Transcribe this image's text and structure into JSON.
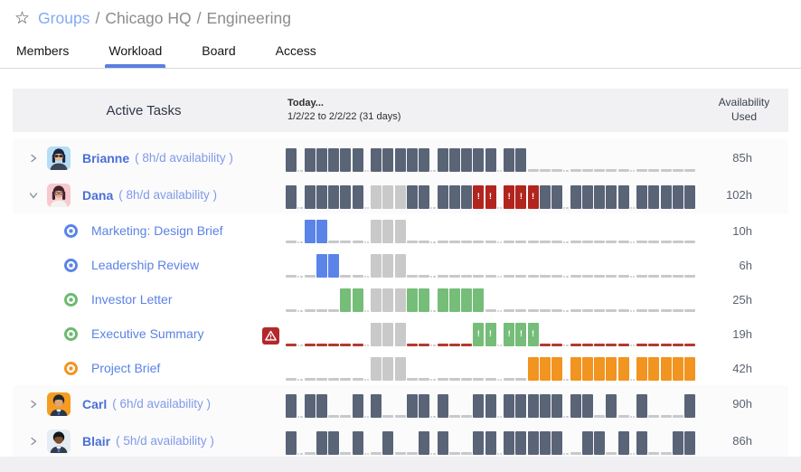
{
  "breadcrumb": {
    "root": "Groups",
    "separator": "/",
    "segments": [
      "Chicago HQ",
      "Engineering"
    ]
  },
  "tabs": [
    {
      "label": "Members",
      "active": false
    },
    {
      "label": "Workload",
      "active": true
    },
    {
      "label": "Board",
      "active": false
    },
    {
      "label": "Access",
      "active": false
    }
  ],
  "table_header": {
    "tasks": "Active Tasks",
    "today": "Today...",
    "range": "1/2/22 to 2/2/22 (31 days)",
    "availability_line1": "Availability",
    "availability_line2": "Used"
  },
  "colors": {
    "accent": "#5b7fe1",
    "dark_bar": "#5a6477",
    "light_bar": "#c9c9c9",
    "blue_bar": "#5b84e8",
    "green_bar": "#75bd79",
    "orange_bar": "#f19420",
    "red_bar": "#b2251f",
    "gray_dash": "#c7c9cc",
    "red_dash": "#b13a30",
    "warning_bg": "#b3282d"
  },
  "timeline_legend": {
    "D": "dark allocation bar",
    "L": "light gray allocation bar",
    "B": "blue task bar",
    "G": "green task bar",
    "O": "orange task bar",
    "R": "red overallocated bar with !",
    "X": "green alert bar with !",
    "-": "empty weekday dash",
    "r": "red empty weekday dash"
  },
  "rows": [
    {
      "type": "member",
      "name": "Brianne",
      "availability_note": "( 8h/d availability )",
      "expanded": false,
      "value": "85h",
      "avatar": {
        "bg": "#b5ddf4",
        "hair": "#1c2440",
        "skin": "#eab584",
        "top": "#3c4656",
        "glasses": "sunglasses"
      },
      "timeline": "DDDDDDDDDDDDDDDDDD-------------"
    },
    {
      "type": "member",
      "name": "Dana",
      "availability_note": "( 8h/d availability )",
      "expanded": true,
      "value": "102h",
      "avatar": {
        "bg": "#f6c9ce",
        "hair": "#40222e",
        "skin": "#eab08b",
        "top": "#f4f2f0",
        "glasses": "glasses"
      },
      "timeline": "DDDDDDLLLDDDDDRRRRRDDDDDDDDDDDD"
    },
    {
      "type": "task",
      "label": "Marketing: Design Brief",
      "status_color": "#5b84e8",
      "value": "10h",
      "timeline": "-BB---LLL----------------------"
    },
    {
      "type": "task",
      "label": "Leadership Review",
      "status_color": "#5b84e8",
      "value": "6h",
      "timeline": "--BB--LLL----------------------"
    },
    {
      "type": "task",
      "label": "Investor Letter",
      "status_color": "#6cba70",
      "value": "25h",
      "timeline": "----GGLLLGGGGGG----------------"
    },
    {
      "type": "task",
      "label": "Executive Summary",
      "status_color": "#6cba70",
      "value": "19h",
      "warning": true,
      "timeline": "rrrrrrLLLrrrrrXXXXXrrrrrrrrrrrr"
    },
    {
      "type": "task",
      "label": "Project Brief",
      "status_color": "#f19420",
      "value": "42h",
      "timeline": "------LLL---------OOOOOOOOOOOOO"
    },
    {
      "type": "member",
      "name": "Carl",
      "availability_note": "( 6h/d availability )",
      "expanded": false,
      "value": "90h",
      "avatar": {
        "bg": "#f59d20",
        "hair": "#23282e",
        "skin": "#e2a473",
        "top": "#2c3647",
        "tie": "#3a63cf",
        "collar": true
      },
      "timeline": "DDD--DD--DDD--DDDDDDDDD-D-D---D"
    },
    {
      "type": "member",
      "name": "Blair",
      "availability_note": "( 5h/d availability )",
      "expanded": false,
      "value": "86h",
      "avatar": {
        "bg": "#e4edf4",
        "hair": "#14181c",
        "skin": "#7c4f2c",
        "top": "#333d4d",
        "tie": "#4a7ad6",
        "collar": true
      },
      "timeline": "D-DD-D-D--DD--DDDDDDD-DD-DD--DD"
    }
  ]
}
